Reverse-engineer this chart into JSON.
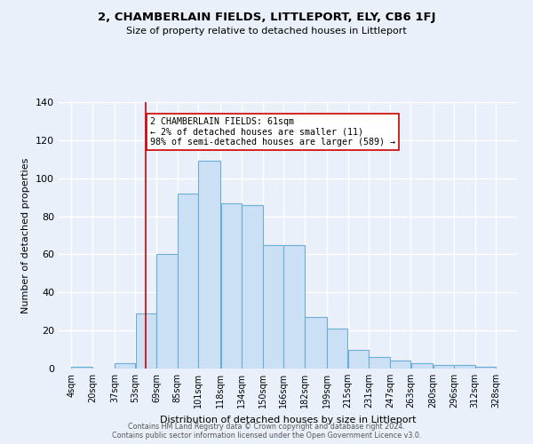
{
  "title": "2, CHAMBERLAIN FIELDS, LITTLEPORT, ELY, CB6 1FJ",
  "subtitle": "Size of property relative to detached houses in Littleport",
  "xlabel": "Distribution of detached houses by size in Littleport",
  "ylabel": "Number of detached properties",
  "bar_labels": [
    "4sqm",
    "20sqm",
    "37sqm",
    "53sqm",
    "69sqm",
    "85sqm",
    "101sqm",
    "118sqm",
    "134sqm",
    "150sqm",
    "166sqm",
    "182sqm",
    "199sqm",
    "215sqm",
    "231sqm",
    "247sqm",
    "263sqm",
    "280sqm",
    "296sqm",
    "312sqm",
    "328sqm"
  ],
  "bar_values": [
    1,
    0,
    3,
    29,
    60,
    92,
    109,
    87,
    86,
    65,
    65,
    27,
    21,
    10,
    6,
    4,
    3,
    2,
    2,
    1,
    0
  ],
  "bin_edges": [
    4,
    20,
    37,
    53,
    69,
    85,
    101,
    118,
    134,
    150,
    166,
    182,
    199,
    215,
    231,
    247,
    263,
    280,
    296,
    312,
    328,
    344
  ],
  "bar_color": "#cce0f5",
  "bar_edgecolor": "#6aaed6",
  "vline_x": 61,
  "vline_color": "#cc0000",
  "annotation_text": "2 CHAMBERLAIN FIELDS: 61sqm\n← 2% of detached houses are smaller (11)\n98% of semi-detached houses are larger (589) →",
  "annotation_box_edgecolor": "#cc0000",
  "annotation_box_facecolor": "#ffffff",
  "ylim": [
    0,
    140
  ],
  "yticks": [
    0,
    20,
    40,
    60,
    80,
    100,
    120,
    140
  ],
  "bg_color": "#eaf0f9",
  "grid_color": "#ffffff",
  "footer_line1": "Contains HM Land Registry data © Crown copyright and database right 2024.",
  "footer_line2": "Contains public sector information licensed under the Open Government Licence v3.0."
}
